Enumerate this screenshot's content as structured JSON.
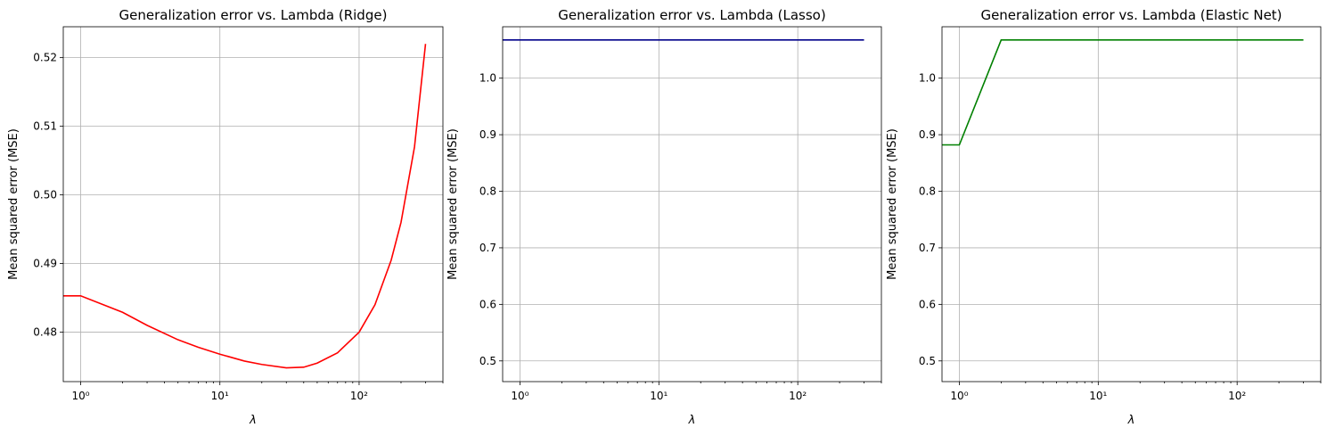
{
  "chart_data": [
    {
      "type": "line",
      "title": "Generalization error vs. Lambda (Ridge)",
      "xlabel": "λ",
      "ylabel": "Mean squared error (MSE)",
      "xscale": "log",
      "xlim": [
        0.75,
        400
      ],
      "ylim": [
        0.4728,
        0.5245
      ],
      "xticks": [
        {
          "value": 1,
          "label": "10⁰"
        },
        {
          "value": 10,
          "label": "10¹"
        },
        {
          "value": 100,
          "label": "10²"
        }
      ],
      "yticks": [
        0.48,
        0.49,
        0.5,
        0.51,
        0.52
      ],
      "ytick_labels": [
        "0.48",
        "0.49",
        "0.50",
        "0.51",
        "0.52"
      ],
      "grid": true,
      "color": "#ff0000",
      "x": [
        0.75,
        1,
        2,
        3,
        5,
        7,
        10,
        15,
        20,
        30,
        40,
        50,
        70,
        100,
        130,
        170,
        200,
        250,
        300
      ],
      "y": [
        0.4853,
        0.4853,
        0.4829,
        0.481,
        0.4789,
        0.4778,
        0.4768,
        0.4758,
        0.4753,
        0.4748,
        0.4749,
        0.4755,
        0.477,
        0.48,
        0.484,
        0.4905,
        0.496,
        0.507,
        0.522
      ]
    },
    {
      "type": "line",
      "title": "Generalization error vs. Lambda (Lasso)",
      "xlabel": "λ",
      "ylabel": "Mean squared error (MSE)",
      "xscale": "log",
      "xlim": [
        0.75,
        400
      ],
      "ylim": [
        0.4634,
        1.0909
      ],
      "xticks": [
        {
          "value": 1,
          "label": "10⁰"
        },
        {
          "value": 10,
          "label": "10¹"
        },
        {
          "value": 100,
          "label": "10²"
        }
      ],
      "yticks": [
        0.5,
        0.6,
        0.7,
        0.8,
        0.9,
        1.0
      ],
      "ytick_labels": [
        "0.5",
        "0.6",
        "0.7",
        "0.8",
        "0.9",
        "1.0"
      ],
      "grid": true,
      "color": "#00008b",
      "x": [
        0.75,
        1,
        10,
        100,
        300
      ],
      "y": [
        1.0675,
        1.0675,
        1.0675,
        1.0675,
        1.0675
      ]
    },
    {
      "type": "line",
      "title": "Generalization error vs. Lambda (Elastic Net)",
      "xlabel": "λ",
      "ylabel": "Mean squared error (MSE)",
      "xscale": "log",
      "xlim": [
        0.75,
        400
      ],
      "ylim": [
        0.4634,
        1.0909
      ],
      "xticks": [
        {
          "value": 1,
          "label": "10⁰"
        },
        {
          "value": 10,
          "label": "10¹"
        },
        {
          "value": 100,
          "label": "10²"
        }
      ],
      "yticks": [
        0.5,
        0.6,
        0.7,
        0.8,
        0.9,
        1.0
      ],
      "ytick_labels": [
        "0.5",
        "0.6",
        "0.7",
        "0.8",
        "0.9",
        "1.0"
      ],
      "grid": true,
      "color": "#008000",
      "x": [
        0.75,
        1,
        2,
        10,
        100,
        300
      ],
      "y": [
        0.882,
        0.882,
        1.0675,
        1.0675,
        1.0675,
        1.0675
      ]
    }
  ]
}
